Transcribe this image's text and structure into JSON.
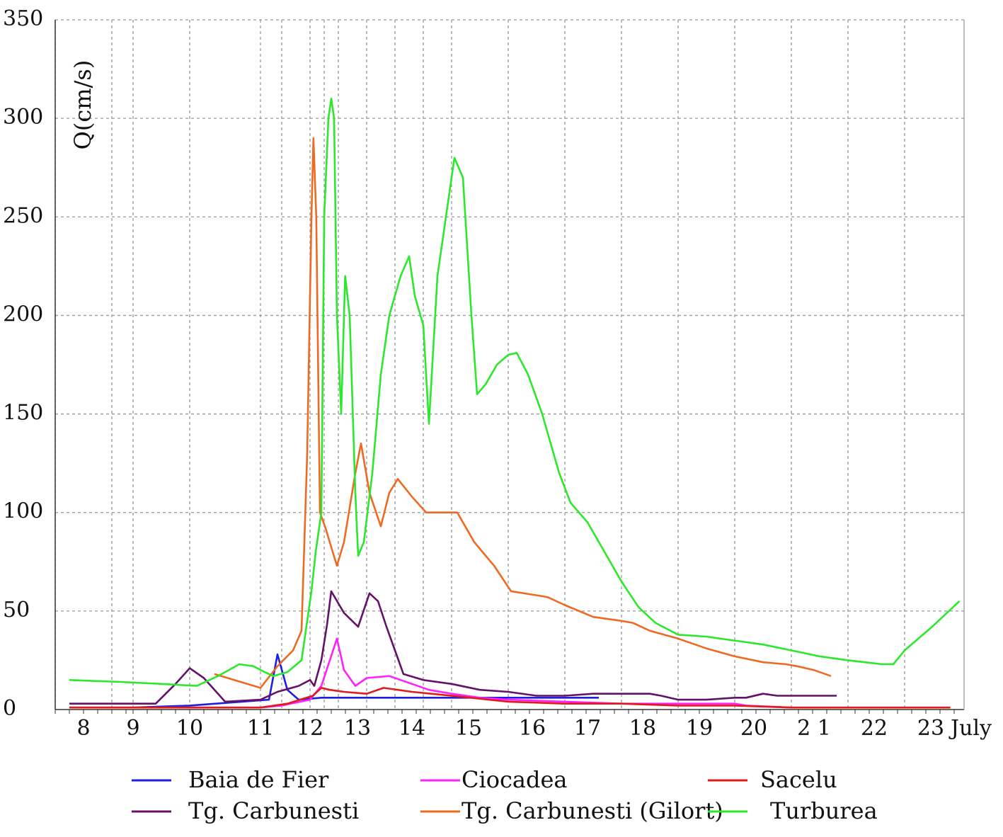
{
  "chart_data": {
    "type": "line",
    "title": "",
    "ylabel": "Q(cm/s)",
    "xlabel": "",
    "ylim": [
      0,
      350
    ],
    "xlim": [
      7.5,
      23.65
    ],
    "grid": true,
    "legend_position": "bottom",
    "y_ticks": [
      {
        "value": 0,
        "label": "0"
      },
      {
        "value": 50,
        "label": "50"
      },
      {
        "value": 100,
        "label": "100"
      },
      {
        "value": 150,
        "label": "150"
      },
      {
        "value": 200,
        "label": "200"
      },
      {
        "value": 250,
        "label": "250"
      },
      {
        "value": 300,
        "label": "300"
      },
      {
        "value": 350,
        "label": "350"
      }
    ],
    "x_gridlines": [
      7.5,
      8.5,
      9.0,
      10.0,
      11.0,
      11.5,
      12.0,
      12.5,
      13.0,
      13.5,
      14.0,
      14.5,
      15.0,
      16.0,
      17.0,
      18.0,
      19.0,
      20.0,
      21.0,
      22.0,
      23.0
    ],
    "x_ticks": [
      {
        "value": 8,
        "label": "8"
      },
      {
        "value": 9,
        "label": "9"
      },
      {
        "value": 10,
        "label": "10"
      },
      {
        "value": 11,
        "label": "11"
      },
      {
        "value": 12,
        "label": "12"
      },
      {
        "value": 13,
        "label": "13"
      },
      {
        "value": 14,
        "label": "14"
      },
      {
        "value": 15,
        "label": "15"
      },
      {
        "value": 16,
        "label": "16"
      },
      {
        "value": 17,
        "label": "17"
      },
      {
        "value": 18,
        "label": "18"
      },
      {
        "value": 19,
        "label": "19"
      },
      {
        "value": 20,
        "label": "20"
      },
      {
        "value": 21,
        "label": "2 1"
      },
      {
        "value": 22,
        "label": "22"
      },
      {
        "value": 23,
        "label": "23"
      },
      {
        "value": 23.6,
        "label": "July"
      }
    ],
    "series": [
      {
        "name": "Baia de Fier",
        "color": "#1f1fe0",
        "points": [
          [
            7.75,
            1
          ],
          [
            9,
            1
          ],
          [
            10,
            2
          ],
          [
            11.2,
            5
          ],
          [
            11.4,
            28
          ],
          [
            11.6,
            10
          ],
          [
            11.8,
            5
          ],
          [
            12.4,
            6
          ],
          [
            13,
            6
          ],
          [
            13.5,
            6
          ],
          [
            14,
            6
          ],
          [
            15,
            6
          ],
          [
            16,
            6
          ],
          [
            17,
            6
          ],
          [
            17.6,
            6
          ]
        ]
      },
      {
        "name": "Ciocadea",
        "color": "#ff20ff",
        "points": [
          [
            7.75,
            1
          ],
          [
            9,
            1
          ],
          [
            10,
            1
          ],
          [
            11,
            1
          ],
          [
            11.5,
            2
          ],
          [
            12,
            5
          ],
          [
            12.4,
            12
          ],
          [
            12.7,
            25
          ],
          [
            12.95,
            36
          ],
          [
            13.1,
            20
          ],
          [
            13.3,
            12
          ],
          [
            13.5,
            16
          ],
          [
            13.9,
            17
          ],
          [
            14.3,
            13
          ],
          [
            14.6,
            10
          ],
          [
            15,
            8
          ],
          [
            15.5,
            6
          ],
          [
            16,
            5
          ],
          [
            17,
            4
          ],
          [
            18,
            3
          ],
          [
            19,
            3
          ],
          [
            20,
            3
          ],
          [
            20.2,
            2
          ],
          [
            21,
            1
          ],
          [
            23.5,
            1
          ]
        ]
      },
      {
        "name": "Sacelu",
        "color": "#e01b1b",
        "points": [
          [
            7.75,
            1
          ],
          [
            10,
            1
          ],
          [
            11,
            1
          ],
          [
            11.6,
            3
          ],
          [
            12.1,
            7
          ],
          [
            12.4,
            11
          ],
          [
            12.7,
            10
          ],
          [
            13.1,
            9
          ],
          [
            13.5,
            8
          ],
          [
            13.8,
            11
          ],
          [
            14.3,
            9
          ],
          [
            15,
            7
          ],
          [
            16,
            4
          ],
          [
            17,
            3
          ],
          [
            18,
            3
          ],
          [
            19,
            2
          ],
          [
            20,
            2
          ],
          [
            21,
            1
          ],
          [
            23.5,
            1
          ]
        ]
      },
      {
        "name": "Tg. Carbunesti",
        "color": "#64116b",
        "points": [
          [
            7.75,
            3
          ],
          [
            8.9,
            3
          ],
          [
            9.4,
            3
          ],
          [
            9.75,
            13
          ],
          [
            10,
            21
          ],
          [
            10.2,
            16
          ],
          [
            10.5,
            4
          ],
          [
            11,
            5
          ],
          [
            11.4,
            9
          ],
          [
            11.8,
            12
          ],
          [
            12,
            15
          ],
          [
            12.15,
            12
          ],
          [
            12.4,
            25
          ],
          [
            12.6,
            43
          ],
          [
            12.75,
            60
          ],
          [
            13.1,
            49
          ],
          [
            13.35,
            42
          ],
          [
            13.55,
            59
          ],
          [
            13.7,
            55
          ],
          [
            13.85,
            42
          ],
          [
            14,
            30
          ],
          [
            14.15,
            18
          ],
          [
            14.5,
            15
          ],
          [
            15,
            13
          ],
          [
            15.5,
            10
          ],
          [
            16,
            9
          ],
          [
            16.5,
            7
          ],
          [
            17,
            7
          ],
          [
            17.5,
            8
          ],
          [
            18,
            8
          ],
          [
            18.5,
            8
          ],
          [
            18.7,
            7
          ],
          [
            19,
            5
          ],
          [
            19.5,
            5
          ],
          [
            20,
            6
          ],
          [
            20.2,
            6
          ],
          [
            20.5,
            8
          ],
          [
            20.75,
            7
          ],
          [
            21,
            7
          ],
          [
            21.5,
            7
          ],
          [
            21.8,
            7
          ]
        ]
      },
      {
        "name": "Tg. Carbunesti (Gilort)",
        "color": "#ee6a22",
        "points": [
          [
            10.35,
            18
          ],
          [
            11,
            11
          ],
          [
            11.4,
            22
          ],
          [
            11.7,
            30
          ],
          [
            11.85,
            40
          ],
          [
            11.95,
            130
          ],
          [
            12.05,
            250
          ],
          [
            12.12,
            290
          ],
          [
            12.22,
            250
          ],
          [
            12.35,
            100
          ],
          [
            12.55,
            92
          ],
          [
            12.8,
            80
          ],
          [
            12.95,
            73
          ],
          [
            13.1,
            85
          ],
          [
            13.3,
            120
          ],
          [
            13.4,
            135
          ],
          [
            13.55,
            110
          ],
          [
            13.75,
            93
          ],
          [
            13.9,
            110
          ],
          [
            14.05,
            117
          ],
          [
            14.3,
            108
          ],
          [
            14.55,
            100
          ],
          [
            15.1,
            100
          ],
          [
            15.4,
            85
          ],
          [
            15.75,
            73
          ],
          [
            16.05,
            60
          ],
          [
            16.5,
            58
          ],
          [
            16.7,
            57
          ],
          [
            17,
            53
          ],
          [
            17.5,
            47
          ],
          [
            18,
            45
          ],
          [
            18.2,
            44
          ],
          [
            18.5,
            40
          ],
          [
            19,
            36
          ],
          [
            19.5,
            31
          ],
          [
            20,
            27
          ],
          [
            20.5,
            24
          ],
          [
            20.9,
            23
          ],
          [
            21.1,
            22
          ],
          [
            21.4,
            20
          ],
          [
            21.7,
            17
          ]
        ]
      },
      {
        "name": "Turburea",
        "color": "#2ce82c",
        "points": [
          [
            7.75,
            15
          ],
          [
            8.7,
            14
          ],
          [
            9.5,
            13
          ],
          [
            10.1,
            12
          ],
          [
            10.4,
            17
          ],
          [
            10.7,
            23
          ],
          [
            10.9,
            22
          ],
          [
            11.1,
            19
          ],
          [
            11.3,
            17
          ],
          [
            11.6,
            19
          ],
          [
            11.85,
            25
          ],
          [
            12.05,
            60
          ],
          [
            12.2,
            80
          ],
          [
            12.4,
            100
          ],
          [
            12.5,
            250
          ],
          [
            12.65,
            300
          ],
          [
            12.75,
            310
          ],
          [
            12.85,
            300
          ],
          [
            12.95,
            200
          ],
          [
            13.05,
            150
          ],
          [
            13.12,
            220
          ],
          [
            13.2,
            200
          ],
          [
            13.3,
            110
          ],
          [
            13.35,
            78
          ],
          [
            13.45,
            85
          ],
          [
            13.6,
            120
          ],
          [
            13.75,
            170
          ],
          [
            13.9,
            200
          ],
          [
            14.1,
            220
          ],
          [
            14.25,
            230
          ],
          [
            14.35,
            210
          ],
          [
            14.5,
            195
          ],
          [
            14.6,
            145
          ],
          [
            14.75,
            220
          ],
          [
            14.95,
            260
          ],
          [
            15.05,
            280
          ],
          [
            15.2,
            270
          ],
          [
            15.35,
            200
          ],
          [
            15.45,
            160
          ],
          [
            15.6,
            165
          ],
          [
            15.8,
            175
          ],
          [
            16,
            180
          ],
          [
            16.15,
            181
          ],
          [
            16.35,
            170
          ],
          [
            16.6,
            150
          ],
          [
            16.9,
            120
          ],
          [
            17.1,
            105
          ],
          [
            17.4,
            95
          ],
          [
            17.7,
            80
          ],
          [
            18.0,
            65
          ],
          [
            18.3,
            52
          ],
          [
            18.6,
            44
          ],
          [
            19.0,
            38
          ],
          [
            19.5,
            37
          ],
          [
            20.0,
            35
          ],
          [
            20.5,
            33
          ],
          [
            21.0,
            30
          ],
          [
            21.5,
            27
          ],
          [
            22.0,
            25
          ],
          [
            22.3,
            24
          ],
          [
            22.6,
            23
          ],
          [
            22.8,
            23
          ],
          [
            23.0,
            30
          ],
          [
            23.3,
            42
          ],
          [
            23.6,
            55
          ]
        ]
      }
    ]
  }
}
